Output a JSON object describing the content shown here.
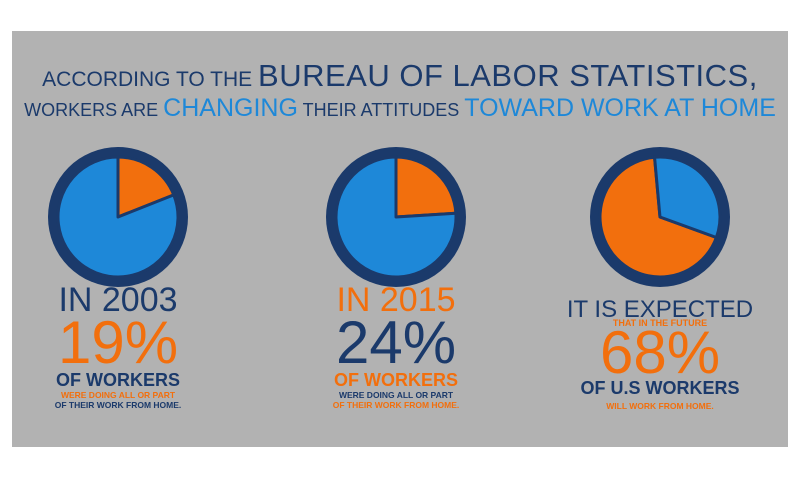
{
  "header": {
    "line1_prefix": "According to the",
    "line1_emph": "Bureau of Labor Statistics,",
    "line2_prefix": "Workers are",
    "line2_emph1": "changing",
    "line2_mid": "their attitudes",
    "line2_emph2": "toward work at home"
  },
  "colors": {
    "navy": "#1b3a6b",
    "blue": "#1e88d8",
    "orange": "#f26f0d",
    "panel": "#b2b2b2"
  },
  "chart_data": [
    {
      "type": "pie",
      "values": [
        19,
        81
      ],
      "year_text": "IN 2003",
      "percent_text": "19%",
      "label": "OF WORKERS",
      "sub_line1": "WERE DOING ALL OR PART",
      "sub_line2": "OF THEIR WORK FROM HOME."
    },
    {
      "type": "pie",
      "values": [
        24,
        76
      ],
      "year_text": "IN 2015",
      "percent_text": "24%",
      "label": "OF WORKERS",
      "sub_line1": "WERE DOING ALL OR PART",
      "sub_line2": "OF THEIR WORK FROM HOME."
    },
    {
      "type": "pie",
      "values": [
        68,
        32
      ],
      "year_text": "IT IS EXPECTED",
      "sub_top": "THAT IN THE  FUTURE",
      "percent_text": "68%",
      "label": "OF U.S WORKERS",
      "sub_line1": "WILL WORK FROM HOME."
    }
  ]
}
